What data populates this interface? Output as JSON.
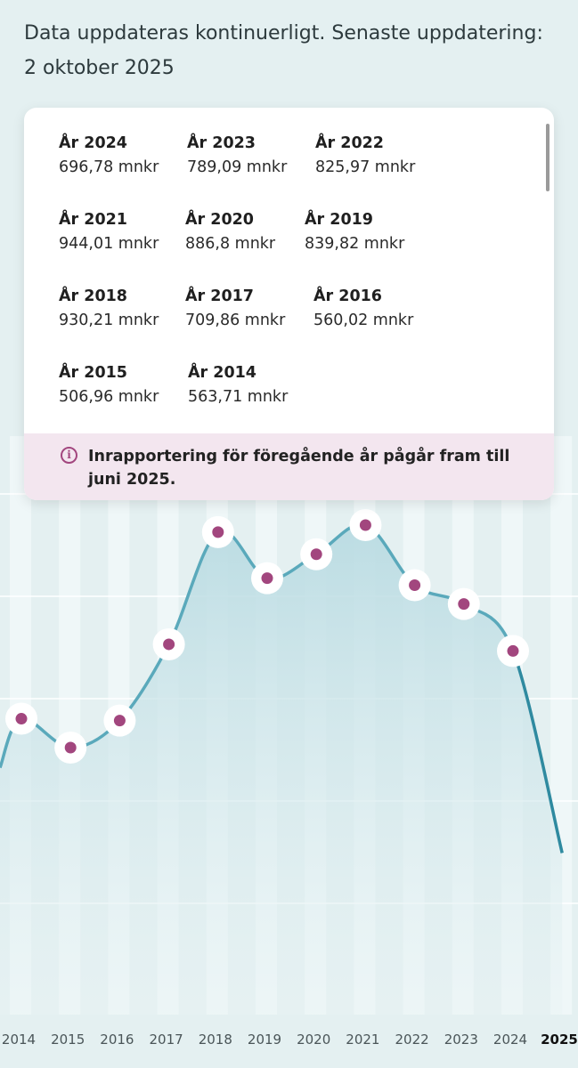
{
  "header": {
    "update_note": "Data uppdateras kontinuerligt. Senaste uppdatering: 2 oktober 2025"
  },
  "card": {
    "years": [
      {
        "label": "År 2024",
        "value": "696,78 mnkr"
      },
      {
        "label": "År 2023",
        "value": "789,09 mnkr"
      },
      {
        "label": "År 2022",
        "value": "825,97 mnkr"
      },
      {
        "label": "År 2021",
        "value": "944,01 mnkr"
      },
      {
        "label": "År 2020",
        "value": "886,8 mnkr"
      },
      {
        "label": "År 2019",
        "value": "839,82 mnkr"
      },
      {
        "label": "År 2018",
        "value": "930,21 mnkr"
      },
      {
        "label": "År 2017",
        "value": "709,86 mnkr"
      },
      {
        "label": "År 2016",
        "value": "560,02 mnkr"
      },
      {
        "label": "År 2015",
        "value": "506,96 mnkr"
      },
      {
        "label": "År 2014",
        "value": "563,71 mnkr"
      }
    ],
    "info_icon": "info-icon",
    "info_text": "Inrapportering för föregående år pågår fram till juni 2025."
  },
  "colors": {
    "line": "#5aa9bb",
    "line_partial": "#2f8aa0",
    "area_top": "#b9dbe2",
    "area_bottom": "#e9f3f4",
    "dot": "#a2467e",
    "accent_bg": "#f3e6ef"
  },
  "chart_data": {
    "type": "area",
    "x": [
      "2014",
      "2015",
      "2016",
      "2017",
      "2018",
      "2019",
      "2020",
      "2021",
      "2022",
      "2023",
      "2024",
      "2025"
    ],
    "series": [
      {
        "name": "mnkr",
        "values": [
          563.71,
          506.96,
          560.02,
          709.86,
          930.21,
          839.82,
          886.8,
          944.01,
          825.97,
          789.09,
          696.78,
          300
        ]
      }
    ],
    "partial_last_point": true,
    "tick_labels": [
      "2014",
      "2015",
      "2016",
      "2017",
      "2018",
      "2019",
      "2020",
      "2021",
      "2022",
      "2023",
      "2024",
      "2025"
    ],
    "highlighted_tick": "2025",
    "grid": true,
    "title": "",
    "xlabel": "",
    "ylabel": ""
  }
}
